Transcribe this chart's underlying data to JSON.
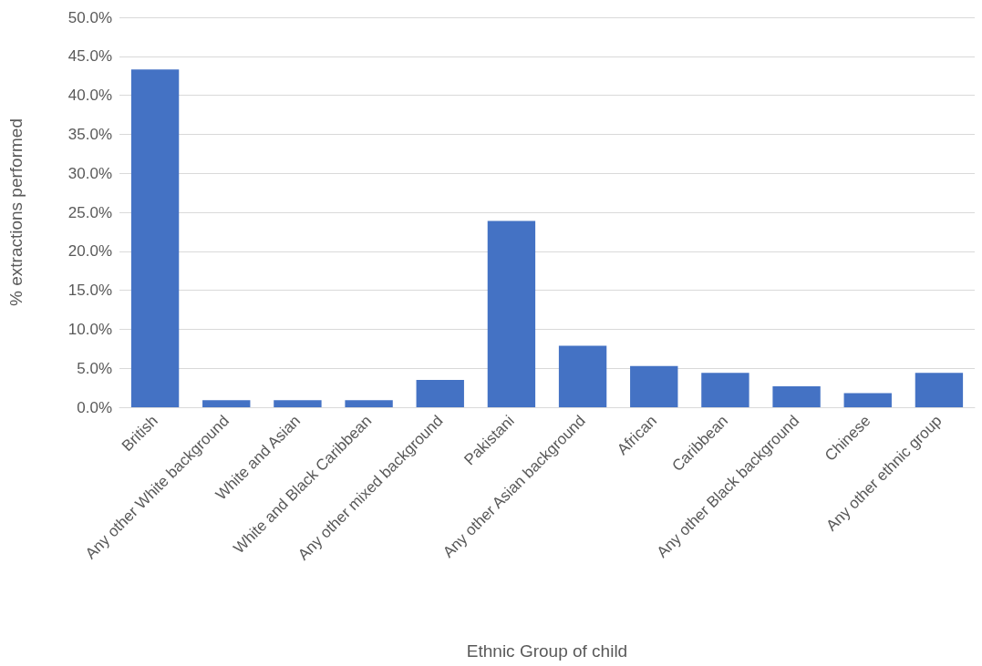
{
  "chart_data": {
    "type": "bar",
    "xlabel": "Ethnic Group of child",
    "ylabel": "% extractions performed",
    "categories": [
      "British",
      "Any other White background",
      "White and Asian",
      "White and Black Caribbean",
      "Any other mixed background",
      "Pakistani",
      "Any other Asian background",
      "African",
      "Caribbean",
      "Any other Black background",
      "Chinese",
      "Any other ethnic group"
    ],
    "values": [
      43.3,
      0.9,
      0.9,
      0.9,
      3.5,
      23.9,
      7.9,
      5.3,
      4.4,
      2.7,
      1.8,
      4.4
    ],
    "color": "#4472c4",
    "ylim": [
      0,
      50
    ],
    "yticks": [
      {
        "value": 0,
        "label": "0.0%"
      },
      {
        "value": 5,
        "label": "5.0%"
      },
      {
        "value": 10,
        "label": "10.0%"
      },
      {
        "value": 15,
        "label": "15.0%"
      },
      {
        "value": 20,
        "label": "20.0%"
      },
      {
        "value": 25,
        "label": "25.0%"
      },
      {
        "value": 30,
        "label": "30.0%"
      },
      {
        "value": 35,
        "label": "35.0%"
      },
      {
        "value": 40,
        "label": "40.0%"
      },
      {
        "value": 45,
        "label": "45.0%"
      },
      {
        "value": 50,
        "label": "50.0%"
      }
    ],
    "grid": "y"
  }
}
